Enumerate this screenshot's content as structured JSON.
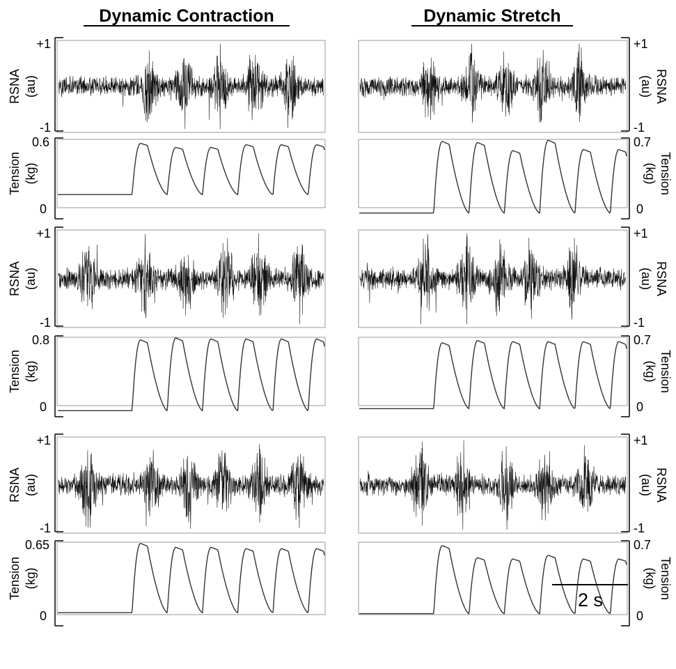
{
  "chart_data": {
    "type": "line",
    "columns": [
      {
        "title": "Dynamic Contraction",
        "rows": [
          {
            "rsna": {
              "ylabel": [
                "RSNA",
                "(au)"
              ],
              "tick_top": "+1",
              "tick_bottom": "-1",
              "ylim": [
                -1,
                1
              ]
            },
            "tension": {
              "ylabel": [
                "Tension",
                "(kg)"
              ],
              "tick_top": "0.6",
              "tick_bottom": "0",
              "ylim": [
                0,
                0.6
              ],
              "onset_s": 2.45,
              "baseline_kg": 0.18,
              "cycle_peaks_kg": [
                0.56,
                0.53,
                0.53,
                0.55,
                0.55
              ]
            }
          },
          {
            "rsna": {
              "ylabel": [
                "RSNA",
                "(au)"
              ],
              "tick_top": "+1",
              "tick_bottom": "-1",
              "ylim": [
                -1,
                1
              ]
            },
            "tension": {
              "ylabel": [
                "Tension",
                "(kg)"
              ],
              "tick_top": "0.8",
              "tick_bottom": "0",
              "ylim": [
                0,
                0.8
              ],
              "onset_s": 2.45,
              "baseline_kg": 0.06,
              "cycle_peaks_kg": [
                0.76,
                0.78,
                0.77,
                0.77,
                0.77
              ]
            }
          },
          {
            "rsna": {
              "ylabel": [
                "RSNA",
                "(au)"
              ],
              "tick_top": "+1",
              "tick_bottom": "-1",
              "ylim": [
                -1,
                1
              ]
            },
            "tension": {
              "ylabel": [
                "Tension",
                "(kg)"
              ],
              "tick_top": "0.65",
              "tick_bottom": "0",
              "ylim": [
                0,
                0.65
              ],
              "onset_s": 2.45,
              "baseline_kg": 0.1,
              "cycle_peaks_kg": [
                0.63,
                0.6,
                0.6,
                0.59,
                0.59
              ]
            }
          }
        ]
      },
      {
        "title": "Dynamic Stretch",
        "rows": [
          {
            "rsna": {
              "ylabel": [
                "RSNA",
                "(au)"
              ],
              "tick_top": "+1",
              "tick_bottom": "-1",
              "ylim": [
                -1,
                1
              ]
            },
            "tension": {
              "ylabel": [
                "Tension",
                "(kg)"
              ],
              "tick_top": "0.7",
              "tick_bottom": "0",
              "ylim": [
                0,
                0.7
              ],
              "onset_s": 2.45,
              "baseline_kg": 0.05,
              "cycle_peaks_kg": [
                0.67,
                0.66,
                0.59,
                0.68,
                0.6
              ]
            }
          },
          {
            "rsna": {
              "ylabel": [
                "RSNA",
                "(au)"
              ],
              "tick_top": "+1",
              "tick_bottom": "-1",
              "ylim": [
                -1,
                1
              ]
            },
            "tension": {
              "ylabel": [
                "Tension",
                "(kg)"
              ],
              "tick_top": "0.7",
              "tick_bottom": "0",
              "ylim": [
                0,
                0.7
              ],
              "onset_s": 2.45,
              "baseline_kg": 0.07,
              "cycle_peaks_kg": [
                0.64,
                0.66,
                0.65,
                0.65,
                0.65
              ]
            }
          },
          {
            "rsna": {
              "ylabel": [
                "RSNA",
                "(au)"
              ],
              "tick_top": "+1",
              "tick_bottom": "-1",
              "ylim": [
                -1,
                1
              ]
            },
            "tension": {
              "ylabel": [
                "Tension",
                "(kg)"
              ],
              "tick_top": "0.7",
              "tick_bottom": "0",
              "ylim": [
                0,
                0.7
              ],
              "onset_s": 2.45,
              "baseline_kg": 0.1,
              "cycle_peaks_kg": [
                0.66,
                0.56,
                0.55,
                0.58,
                0.55
              ]
            }
          }
        ]
      }
    ],
    "scale_bar": {
      "label": "2 s",
      "seconds": 2
    },
    "record_length_s": 8.75
  }
}
